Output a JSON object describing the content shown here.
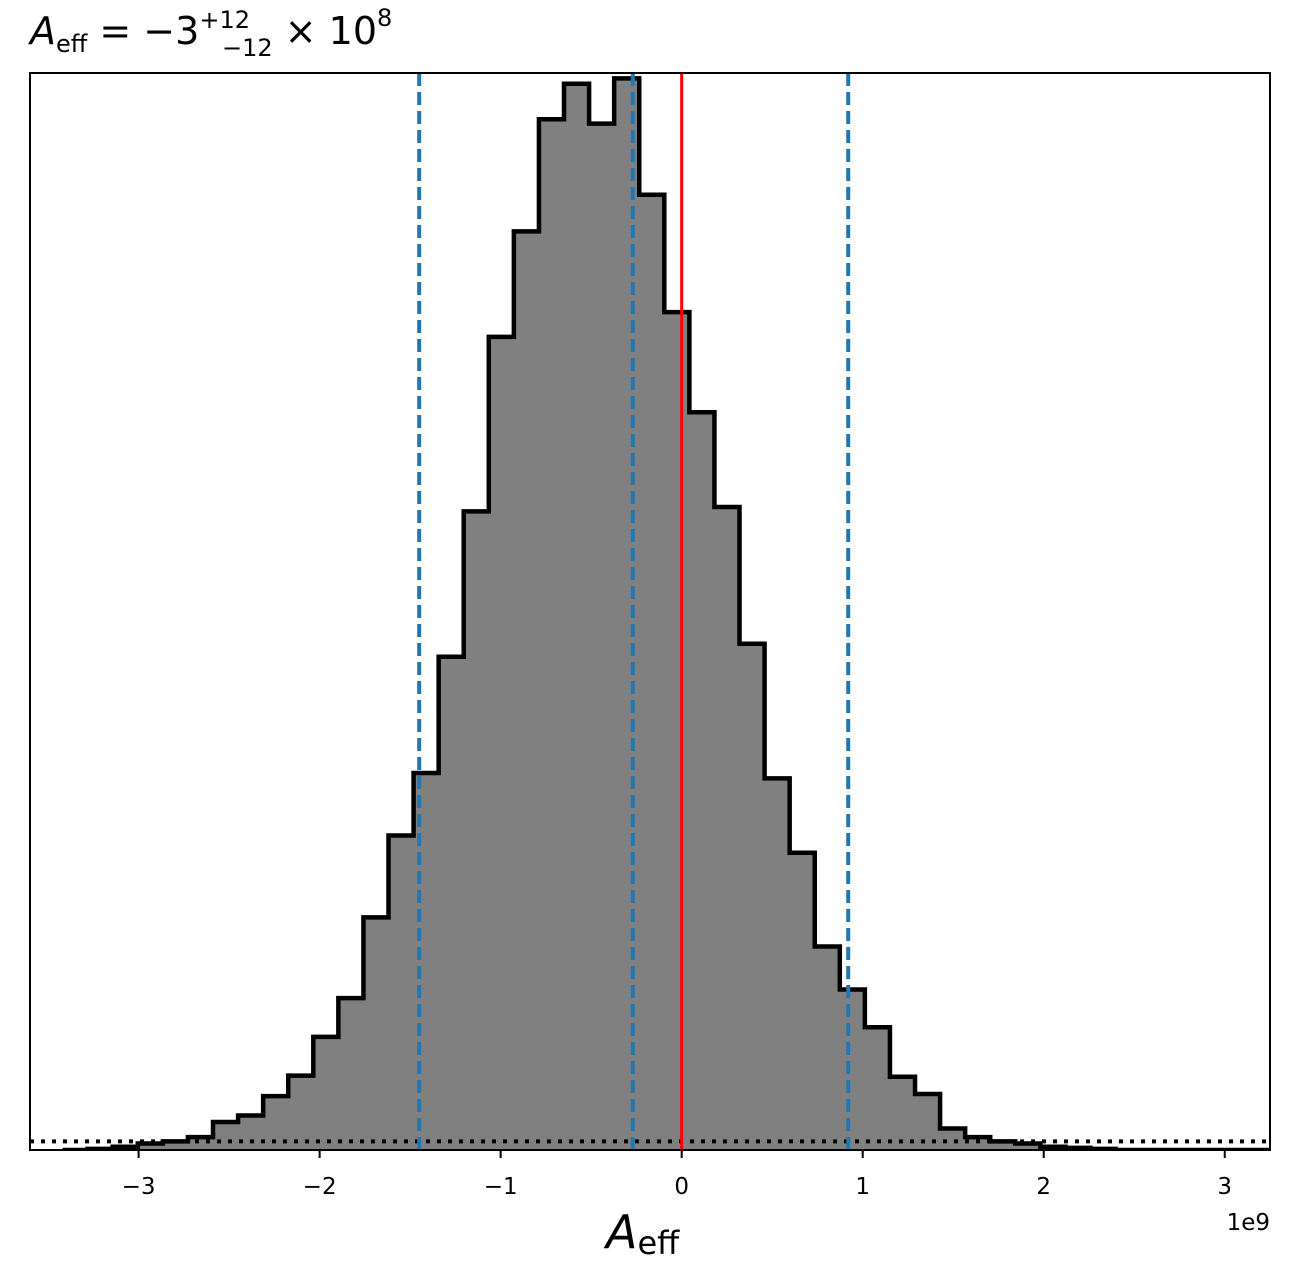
{
  "title": {
    "symbol": "A",
    "symbol_sub": "eff",
    "body": " = −3",
    "sup": "+12",
    "sub": "−12",
    "tail": " × 10",
    "exp": "8"
  },
  "xaxis": {
    "label_symbol": "A",
    "label_sub": "eff",
    "offset_text": "1e9",
    "ticks": [
      {
        "value": -3,
        "label": "−3"
      },
      {
        "value": -2,
        "label": "−2"
      },
      {
        "value": -1,
        "label": "−1"
      },
      {
        "value": 0,
        "label": "0"
      },
      {
        "value": 1,
        "label": "1"
      },
      {
        "value": 2,
        "label": "2"
      },
      {
        "value": 3,
        "label": "3"
      }
    ]
  },
  "colors": {
    "fill": "#808080",
    "edge": "#000000",
    "quantile": "#1f77b4",
    "truth": "#ff0000",
    "prior": "#000000"
  },
  "chart_data": {
    "type": "histogram",
    "x_unit_multiplier": 1000000000.0,
    "xlim": [
      -3.6,
      3.25
    ],
    "ylim": [
      0,
      1.0
    ],
    "bin_start": -3.42,
    "bin_width": 0.1385,
    "counts": [
      0.0,
      0.001,
      0.003,
      0.006,
      0.008,
      0.012,
      0.026,
      0.032,
      0.05,
      0.069,
      0.105,
      0.141,
      0.216,
      0.292,
      0.35,
      0.458,
      0.593,
      0.755,
      0.853,
      0.957,
      0.99,
      0.953,
      0.995,
      0.887,
      0.778,
      0.685,
      0.597,
      0.47,
      0.345,
      0.276,
      0.189,
      0.149,
      0.114,
      0.068,
      0.052,
      0.02,
      0.012,
      0.008,
      0.006,
      0.003,
      0.002,
      0.001,
      0.0
    ],
    "quantiles": [
      -1.45,
      -0.27,
      0.92
    ],
    "truth": 0.0,
    "prior_level": 0.008
  }
}
